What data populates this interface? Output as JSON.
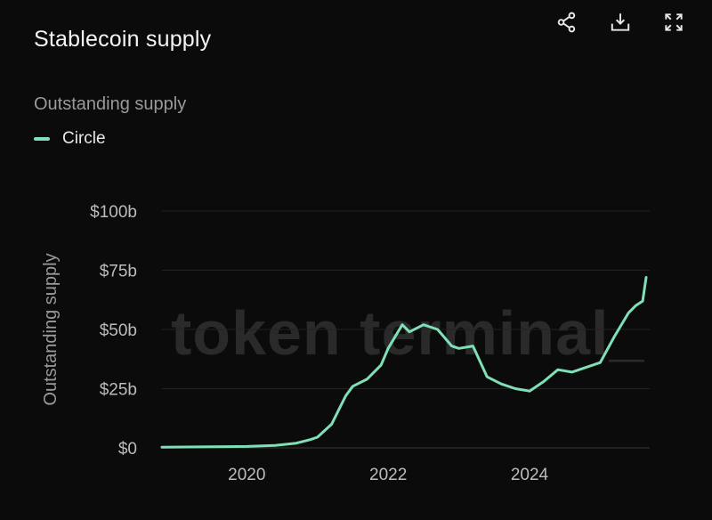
{
  "header": {
    "title": "Stablecoin supply",
    "icons": [
      "share-icon",
      "download-icon",
      "fullscreen-icon"
    ]
  },
  "chart_header": {
    "subtitle": "Outstanding supply",
    "legend": [
      {
        "label": "Circle",
        "color": "#7fe0b8"
      }
    ]
  },
  "watermark": "token terminal_",
  "chart_data": {
    "type": "line",
    "title": "Stablecoin supply",
    "subtitle": "Outstanding supply",
    "ylabel": "Outstanding supply",
    "xlabel": "",
    "xlim": [
      2018.8,
      2025.7
    ],
    "ylim": [
      0,
      100
    ],
    "x_ticks": [
      2020,
      2022,
      2024
    ],
    "y_ticks": [
      0,
      25,
      50,
      75,
      100
    ],
    "y_tick_labels": [
      "$0",
      "$25b",
      "$50b",
      "$75b",
      "$100b"
    ],
    "grid": true,
    "legend_position": "top-left",
    "series": [
      {
        "name": "Circle",
        "color": "#7fe0b8",
        "x": [
          2018.8,
          2019.5,
          2020.0,
          2020.4,
          2020.7,
          2020.9,
          2021.0,
          2021.2,
          2021.4,
          2021.5,
          2021.7,
          2021.9,
          2022.0,
          2022.2,
          2022.3,
          2022.5,
          2022.7,
          2022.9,
          2023.0,
          2023.2,
          2023.4,
          2023.6,
          2023.8,
          2024.0,
          2024.2,
          2024.4,
          2024.6,
          2024.8,
          2025.0,
          2025.2,
          2025.4,
          2025.5,
          2025.6,
          2025.65
        ],
        "y": [
          0.3,
          0.5,
          0.6,
          1,
          2,
          3.5,
          4.5,
          10,
          22,
          26,
          29,
          35,
          42,
          52,
          49,
          52,
          50,
          43,
          42,
          43,
          30,
          27,
          25,
          24,
          28,
          33,
          32,
          34,
          36,
          47,
          57,
          60,
          62,
          72
        ]
      }
    ]
  }
}
